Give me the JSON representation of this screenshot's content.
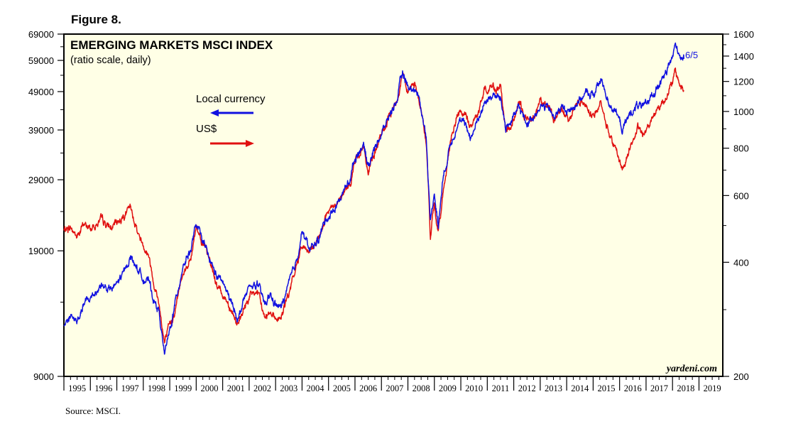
{
  "figure_label": "Figure 8.",
  "source": "Source: MSCI.",
  "chart_data": {
    "type": "line",
    "title": "EMERGING MARKETS MSCI INDEX",
    "subtitle": "(ratio scale, daily)",
    "watermark": "yardeni.com",
    "end_label": "6/5",
    "x_range": [
      1995.0,
      2019.9
    ],
    "x_tick_labels": [
      "1995",
      "1996",
      "1997",
      "1998",
      "1999",
      "2000",
      "2001",
      "2002",
      "2003",
      "2004",
      "2005",
      "2006",
      "2007",
      "2008",
      "2009",
      "2010",
      "2011",
      "2012",
      "2013",
      "2014",
      "2015",
      "2016",
      "2017",
      "2018",
      "2019"
    ],
    "left_axis": {
      "scale": "log",
      "range": [
        9000,
        69000
      ],
      "tick_values": [
        9000,
        19000,
        29000,
        39000,
        49000,
        59000,
        69000
      ],
      "tick_labels": [
        "9000",
        "19000",
        "29000",
        "39000",
        "49000",
        "59000",
        "69000"
      ],
      "minor_ticks": [
        14000,
        24000,
        34000,
        44000,
        54000,
        64000
      ]
    },
    "right_axis": {
      "scale": "log",
      "range": [
        200,
        1600
      ],
      "tick_values": [
        200,
        400,
        600,
        800,
        1000,
        1200,
        1400,
        1600
      ],
      "tick_labels": [
        "200",
        "400",
        "600",
        "800",
        "1000",
        "1200",
        "1400",
        "1600"
      ],
      "minor_ticks": [
        300,
        500,
        700,
        900,
        1100,
        1300,
        1500
      ]
    },
    "series": [
      {
        "name": "Local currency",
        "axis": "left",
        "color": "#1010e0",
        "points": [
          [
            1995.0,
            12200
          ],
          [
            1995.25,
            12900
          ],
          [
            1995.5,
            12400
          ],
          [
            1995.75,
            13800
          ],
          [
            1996.0,
            14300
          ],
          [
            1996.4,
            15500
          ],
          [
            1996.8,
            15000
          ],
          [
            1997.0,
            15600
          ],
          [
            1997.3,
            16800
          ],
          [
            1997.5,
            18400
          ],
          [
            1997.7,
            17500
          ],
          [
            1997.9,
            16500
          ],
          [
            1998.2,
            15800
          ],
          [
            1998.4,
            14200
          ],
          [
            1998.6,
            13200
          ],
          [
            1998.8,
            10200
          ],
          [
            1999.0,
            11800
          ],
          [
            1999.2,
            13800
          ],
          [
            1999.5,
            17500
          ],
          [
            1999.8,
            19200
          ],
          [
            2000.0,
            22200
          ],
          [
            2000.2,
            20500
          ],
          [
            2000.5,
            18000
          ],
          [
            2000.8,
            16200
          ],
          [
            2001.0,
            15800
          ],
          [
            2001.3,
            14000
          ],
          [
            2001.6,
            12700
          ],
          [
            2001.8,
            14200
          ],
          [
            2002.0,
            15200
          ],
          [
            2002.3,
            15600
          ],
          [
            2002.6,
            13800
          ],
          [
            2002.8,
            14600
          ],
          [
            2003.0,
            13800
          ],
          [
            2003.2,
            13500
          ],
          [
            2003.5,
            15500
          ],
          [
            2003.8,
            18000
          ],
          [
            2004.0,
            21500
          ],
          [
            2004.3,
            19000
          ],
          [
            2004.6,
            20200
          ],
          [
            2004.9,
            23000
          ],
          [
            2005.2,
            24200
          ],
          [
            2005.5,
            26500
          ],
          [
            2005.8,
            29000
          ],
          [
            2006.0,
            33000
          ],
          [
            2006.3,
            36000
          ],
          [
            2006.5,
            31500
          ],
          [
            2006.8,
            36000
          ],
          [
            2007.0,
            38000
          ],
          [
            2007.3,
            42500
          ],
          [
            2007.6,
            47000
          ],
          [
            2007.8,
            55000
          ],
          [
            2008.0,
            50500
          ],
          [
            2008.3,
            49500
          ],
          [
            2008.5,
            44500
          ],
          [
            2008.7,
            37000
          ],
          [
            2008.85,
            22500
          ],
          [
            2009.0,
            27000
          ],
          [
            2009.15,
            22000
          ],
          [
            2009.3,
            28500
          ],
          [
            2009.6,
            36000
          ],
          [
            2009.9,
            41000
          ],
          [
            2010.1,
            40500
          ],
          [
            2010.4,
            37500
          ],
          [
            2010.7,
            42500
          ],
          [
            2010.9,
            46000
          ],
          [
            2011.2,
            48000
          ],
          [
            2011.5,
            47000
          ],
          [
            2011.7,
            39500
          ],
          [
            2011.9,
            41000
          ],
          [
            2012.2,
            44500
          ],
          [
            2012.5,
            40500
          ],
          [
            2012.8,
            43000
          ],
          [
            2013.0,
            45000
          ],
          [
            2013.3,
            44500
          ],
          [
            2013.5,
            42000
          ],
          [
            2013.8,
            44500
          ],
          [
            2014.1,
            43500
          ],
          [
            2014.5,
            47000
          ],
          [
            2014.8,
            48500
          ],
          [
            2015.0,
            48000
          ],
          [
            2015.3,
            52500
          ],
          [
            2015.6,
            46000
          ],
          [
            2015.9,
            43000
          ],
          [
            2016.1,
            39000
          ],
          [
            2016.4,
            43000
          ],
          [
            2016.7,
            45500
          ],
          [
            2016.9,
            44000
          ],
          [
            2017.2,
            48000
          ],
          [
            2017.5,
            51000
          ],
          [
            2017.8,
            55000
          ],
          [
            2018.0,
            60500
          ],
          [
            2018.1,
            64500
          ],
          [
            2018.3,
            61000
          ],
          [
            2018.43,
            59500
          ]
        ]
      },
      {
        "name": "US$",
        "axis": "right",
        "color": "#e01010",
        "points": [
          [
            1995.0,
            485
          ],
          [
            1995.25,
            495
          ],
          [
            1995.5,
            465
          ],
          [
            1995.75,
            505
          ],
          [
            1996.0,
            490
          ],
          [
            1996.4,
            515
          ],
          [
            1996.8,
            490
          ],
          [
            1997.0,
            510
          ],
          [
            1997.3,
            535
          ],
          [
            1997.5,
            555
          ],
          [
            1997.7,
            505
          ],
          [
            1997.9,
            460
          ],
          [
            1998.2,
            420
          ],
          [
            1998.4,
            355
          ],
          [
            1998.6,
            310
          ],
          [
            1998.8,
            245
          ],
          [
            1999.0,
            270
          ],
          [
            1999.2,
            300
          ],
          [
            1999.5,
            380
          ],
          [
            1999.8,
            405
          ],
          [
            2000.0,
            505
          ],
          [
            2000.2,
            460
          ],
          [
            2000.5,
            405
          ],
          [
            2000.8,
            345
          ],
          [
            2001.0,
            330
          ],
          [
            2001.3,
            305
          ],
          [
            2001.6,
            270
          ],
          [
            2001.8,
            300
          ],
          [
            2002.0,
            325
          ],
          [
            2002.3,
            335
          ],
          [
            2002.6,
            285
          ],
          [
            2002.8,
            300
          ],
          [
            2003.0,
            285
          ],
          [
            2003.2,
            285
          ],
          [
            2003.5,
            330
          ],
          [
            2003.8,
            390
          ],
          [
            2004.0,
            450
          ],
          [
            2004.3,
            420
          ],
          [
            2004.6,
            455
          ],
          [
            2004.9,
            530
          ],
          [
            2005.2,
            555
          ],
          [
            2005.5,
            590
          ],
          [
            2005.8,
            640
          ],
          [
            2006.0,
            740
          ],
          [
            2006.3,
            810
          ],
          [
            2006.5,
            690
          ],
          [
            2006.8,
            800
          ],
          [
            2007.0,
            860
          ],
          [
            2007.3,
            970
          ],
          [
            2007.6,
            1080
          ],
          [
            2007.8,
            1270
          ],
          [
            2008.0,
            1140
          ],
          [
            2008.3,
            1180
          ],
          [
            2008.5,
            1010
          ],
          [
            2008.7,
            820
          ],
          [
            2008.85,
            470
          ],
          [
            2009.0,
            560
          ],
          [
            2009.15,
            480
          ],
          [
            2009.3,
            590
          ],
          [
            2009.6,
            830
          ],
          [
            2009.9,
            990
          ],
          [
            2010.1,
            990
          ],
          [
            2010.4,
            910
          ],
          [
            2010.7,
            1010
          ],
          [
            2010.9,
            1140
          ],
          [
            2011.2,
            1160
          ],
          [
            2011.5,
            1150
          ],
          [
            2011.7,
            880
          ],
          [
            2011.9,
            910
          ],
          [
            2012.2,
            1050
          ],
          [
            2012.5,
            940
          ],
          [
            2012.8,
            1000
          ],
          [
            2013.0,
            1060
          ],
          [
            2013.3,
            1040
          ],
          [
            2013.5,
            940
          ],
          [
            2013.8,
            1010
          ],
          [
            2014.1,
            960
          ],
          [
            2014.5,
            1080
          ],
          [
            2014.8,
            1030
          ],
          [
            2015.0,
            970
          ],
          [
            2015.3,
            1050
          ],
          [
            2015.6,
            880
          ],
          [
            2015.9,
            780
          ],
          [
            2016.1,
            700
          ],
          [
            2016.4,
            810
          ],
          [
            2016.7,
            900
          ],
          [
            2016.9,
            860
          ],
          [
            2017.2,
            960
          ],
          [
            2017.5,
            1030
          ],
          [
            2017.8,
            1110
          ],
          [
            2018.0,
            1190
          ],
          [
            2018.1,
            1270
          ],
          [
            2018.3,
            1170
          ],
          [
            2018.43,
            1130
          ]
        ]
      }
    ],
    "legend": [
      {
        "label": "Local currency",
        "arrow": "left",
        "color": "#1010e0"
      },
      {
        "label": "US$",
        "arrow": "right",
        "color": "#e01010"
      }
    ],
    "grid": false,
    "background": "#ffffe6"
  }
}
